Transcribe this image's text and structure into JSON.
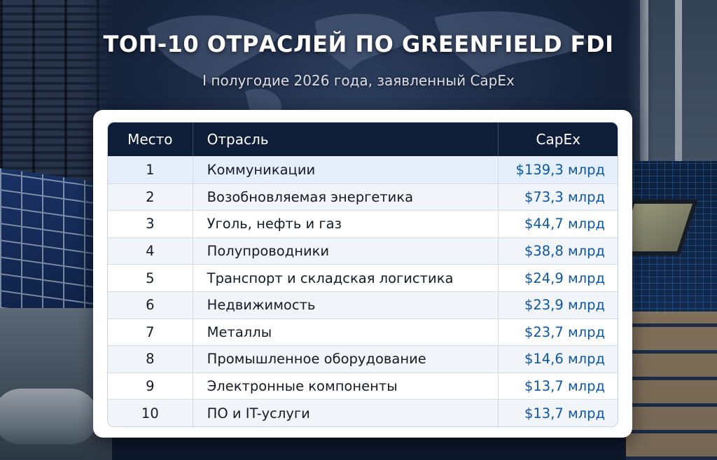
{
  "title": "ТОП-10 ОТРАСЛЕЙ ПО GREENFIELD FDI",
  "subtitle": "I полугодие 2026 года, заявленный CapEx",
  "table": {
    "headers": [
      "Место",
      "Отрасль",
      "CapEx"
    ],
    "rows": [
      {
        "rank": "1",
        "industry": "Коммуникации",
        "capex": "$139,3 млрд"
      },
      {
        "rank": "2",
        "industry": "Возобновляемая энергетика",
        "capex": "$73,3 млрд"
      },
      {
        "rank": "3",
        "industry": "Уголь, нефть и газ",
        "capex": "$44,7 млрд"
      },
      {
        "rank": "4",
        "industry": "Полупроводники",
        "capex": "$38,8 млрд"
      },
      {
        "rank": "5",
        "industry": "Транспорт и складская логистика",
        "capex": "$24,9 млрд"
      },
      {
        "rank": "6",
        "industry": "Недвижимость",
        "capex": "$23,9 млрд"
      },
      {
        "rank": "7",
        "industry": "Металлы",
        "capex": "$23,7 млрд"
      },
      {
        "rank": "8",
        "industry": "Промышленное оборудование",
        "capex": "$14,6 млрд"
      },
      {
        "rank": "9",
        "industry": "Электронные компоненты",
        "capex": "$13,7 млрд"
      },
      {
        "rank": "10",
        "industry": "ПО и IT-услуги",
        "capex": "$13,7 млрд"
      }
    ]
  },
  "colors": {
    "header_bg": "#0f1e38",
    "capex_text": "#0f57a3",
    "highlight_row": "#e4effb",
    "background": "#0e1a2e"
  }
}
